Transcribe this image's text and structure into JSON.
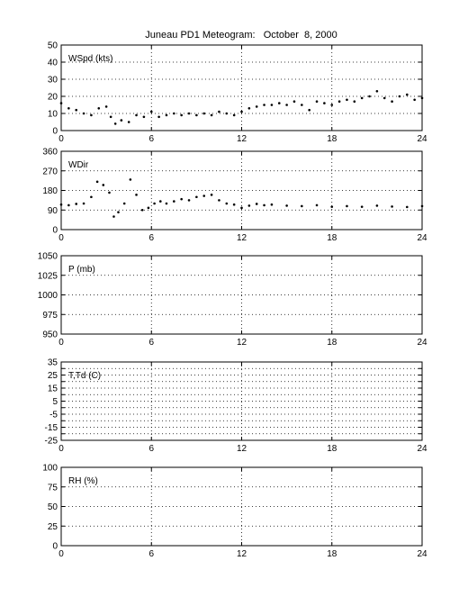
{
  "figure": {
    "title": "Juneau PD1 Meteogram:   October  8, 2000"
  },
  "chart_data": [
    {
      "type": "scatter",
      "label": "WSpd (kts)",
      "xlim": [
        0,
        24
      ],
      "ylim": [
        0,
        50
      ],
      "x_ticks": [
        0,
        6,
        12,
        18,
        24
      ],
      "y_ticks": [
        0,
        10,
        20,
        30,
        40,
        50
      ],
      "grid": true,
      "series": [
        {
          "x": [
            0,
            0.5,
            1,
            1.5,
            2,
            2.5,
            3,
            3.3,
            3.6,
            4,
            4.5,
            5,
            5.5,
            6,
            6.5,
            7,
            7.5,
            8,
            8.5,
            9,
            9.5,
            10,
            10.5,
            11,
            11.5,
            12,
            12.5,
            13,
            13.5,
            14,
            14.5,
            15,
            15.5,
            16,
            16.5,
            17,
            17.5,
            18,
            18.5,
            19,
            19.5,
            20,
            20.5,
            21,
            21.5,
            22,
            22.5,
            23,
            23.5,
            24
          ],
          "values": [
            16,
            13,
            12,
            10,
            9,
            13,
            14,
            8,
            4,
            6,
            5,
            9,
            8,
            11,
            8,
            9,
            10,
            9,
            10,
            9,
            10,
            9,
            11,
            10,
            9,
            11,
            13,
            14,
            15,
            15,
            16,
            15,
            17,
            15,
            12,
            17,
            16,
            15,
            17,
            18,
            17,
            19,
            20,
            23,
            19,
            17,
            20,
            21,
            18,
            19
          ]
        }
      ]
    },
    {
      "type": "scatter",
      "label": "WDir",
      "xlim": [
        0,
        24
      ],
      "ylim": [
        0,
        360
      ],
      "x_ticks": [
        0,
        6,
        12,
        18,
        24
      ],
      "y_ticks": [
        0,
        90,
        180,
        270,
        360
      ],
      "grid": true,
      "series": [
        {
          "x": [
            0,
            0.5,
            1,
            1.5,
            2,
            2.4,
            2.8,
            3.2,
            3.5,
            3.8,
            4.2,
            4.6,
            5,
            5.4,
            5.8,
            6.2,
            6.6,
            7,
            7.5,
            8,
            8.5,
            9,
            9.5,
            10,
            10.5,
            11,
            11.5,
            12,
            12.5,
            13,
            13.5,
            14,
            15,
            16,
            17,
            18,
            19,
            20,
            21,
            22,
            23,
            24
          ],
          "values": [
            115,
            112,
            118,
            120,
            150,
            220,
            205,
            170,
            60,
            80,
            120,
            230,
            160,
            90,
            100,
            120,
            130,
            120,
            130,
            140,
            135,
            150,
            155,
            160,
            135,
            120,
            115,
            100,
            110,
            118,
            112,
            115,
            110,
            108,
            112,
            105,
            108,
            105,
            110,
            106,
            104,
            108
          ]
        }
      ]
    },
    {
      "type": "scatter",
      "label": "P (mb)",
      "xlim": [
        0,
        24
      ],
      "ylim": [
        950,
        1050
      ],
      "x_ticks": [
        0,
        6,
        12,
        18,
        24
      ],
      "y_ticks": [
        950,
        975,
        1000,
        1025,
        1050
      ],
      "grid": true,
      "series": []
    },
    {
      "type": "scatter",
      "label": "T,Td (C)",
      "xlim": [
        0,
        24
      ],
      "ylim": [
        -25,
        35
      ],
      "x_ticks": [
        0,
        6,
        12,
        18,
        24
      ],
      "y_ticks": [
        -25,
        -15,
        -5,
        5,
        15,
        25,
        35
      ],
      "extra_y_ticks": [
        -25,
        -20,
        -15,
        -10,
        -5,
        0,
        5,
        10,
        15,
        20,
        25,
        30,
        35
      ],
      "tick_label_values": [
        -25,
        -15,
        -5,
        5,
        15,
        25,
        35
      ],
      "tick_labels": [
        "-25",
        "-15",
        "-5",
        "5",
        "15",
        "25",
        "35"
      ],
      "grid": true,
      "series": []
    },
    {
      "type": "scatter",
      "label": "RH (%)",
      "xlim": [
        0,
        24
      ],
      "ylim": [
        0,
        100
      ],
      "x_ticks": [
        0,
        6,
        12,
        18,
        24
      ],
      "y_ticks": [
        0,
        25,
        50,
        75,
        100
      ],
      "grid": true,
      "series": []
    }
  ]
}
